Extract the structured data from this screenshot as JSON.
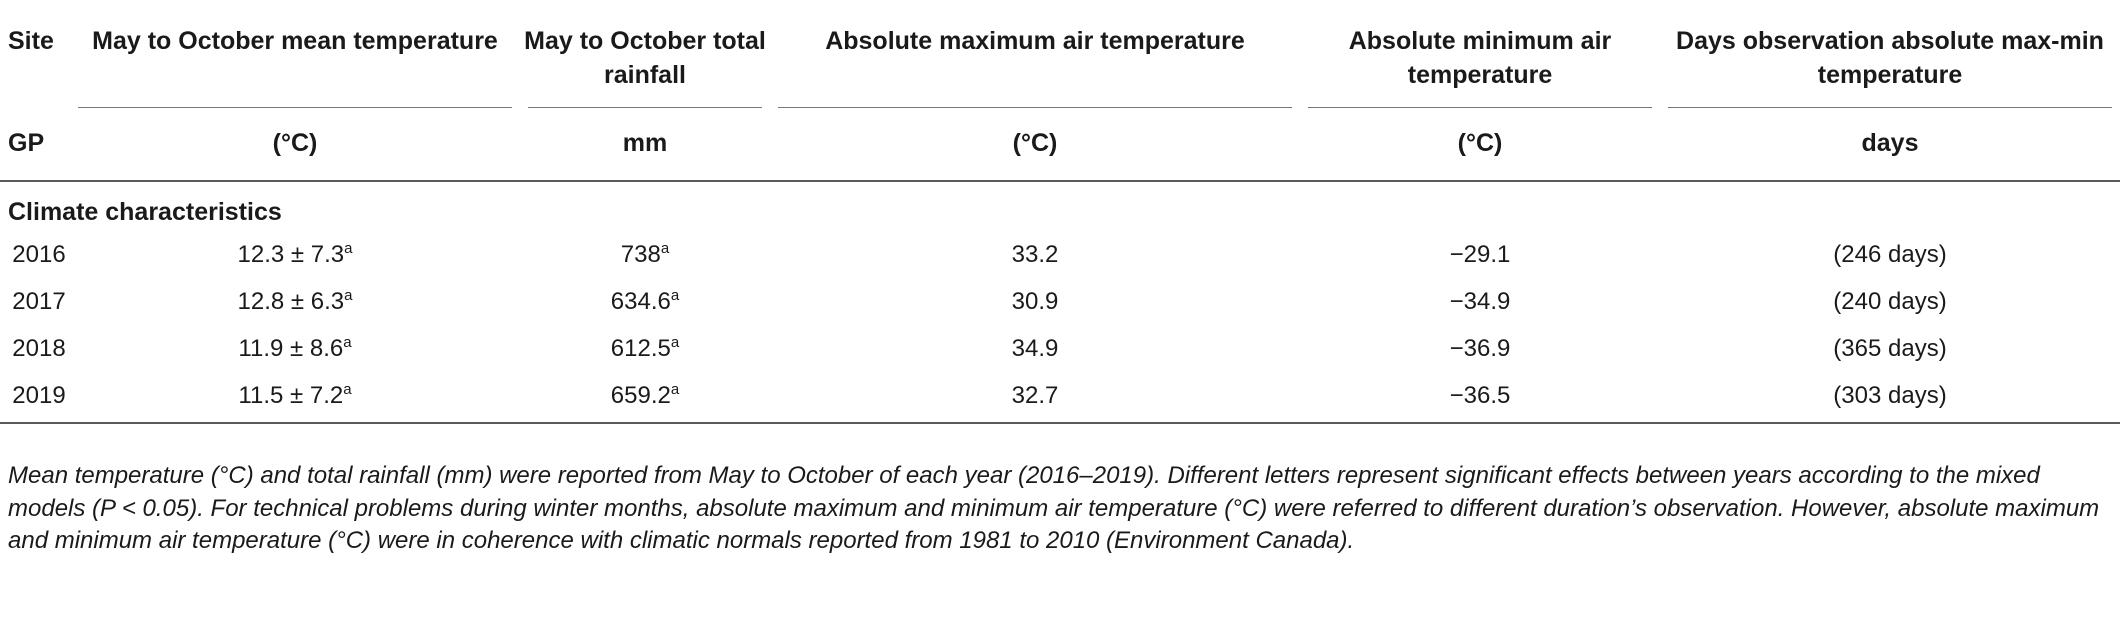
{
  "table": {
    "header_row1": [
      "Site",
      "May to October mean temperature",
      "May to October total rainfall",
      "Absolute maximum air temperature",
      "Absolute minimum air temperature",
      "Days observation absolute max-min temperature"
    ],
    "header_row2": [
      "GP",
      "(°C)",
      "mm",
      "(°C)",
      "(°C)",
      "days"
    ],
    "section_label": "Climate characteristics",
    "superscript_letter": "a",
    "rows": [
      {
        "site": "2016",
        "mean_temp": "12.3 ± 7.3",
        "rainfall": "738",
        "abs_max": "33.2",
        "abs_min": "−29.1",
        "days": "(246 days)"
      },
      {
        "site": "2017",
        "mean_temp": "12.8 ± 6.3",
        "rainfall": "634.6",
        "abs_max": "30.9",
        "abs_min": "−34.9",
        "days": "(240 days)"
      },
      {
        "site": "2018",
        "mean_temp": "11.9 ± 8.6",
        "rainfall": "612.5",
        "abs_max": "34.9",
        "abs_min": "−36.9",
        "days": "(365 days)"
      },
      {
        "site": "2019",
        "mean_temp": "11.5 ± 7.2",
        "rainfall": "659.2",
        "abs_max": "32.7",
        "abs_min": "−36.5",
        "days": "(303 days)"
      }
    ]
  },
  "footnote": "Mean temperature (°C) and total rainfall (mm) were reported from May to October of each year (2016–2019). Different letters represent significant effects between years according to the mixed models (P < 0.05). For technical problems during winter months, absolute maximum and minimum air temperature (°C) were referred to different duration’s observation. However, absolute maximum and minimum air temperature (°C) were in coherence with climatic normals reported from 1981 to 2010 (Environment Canada)."
}
